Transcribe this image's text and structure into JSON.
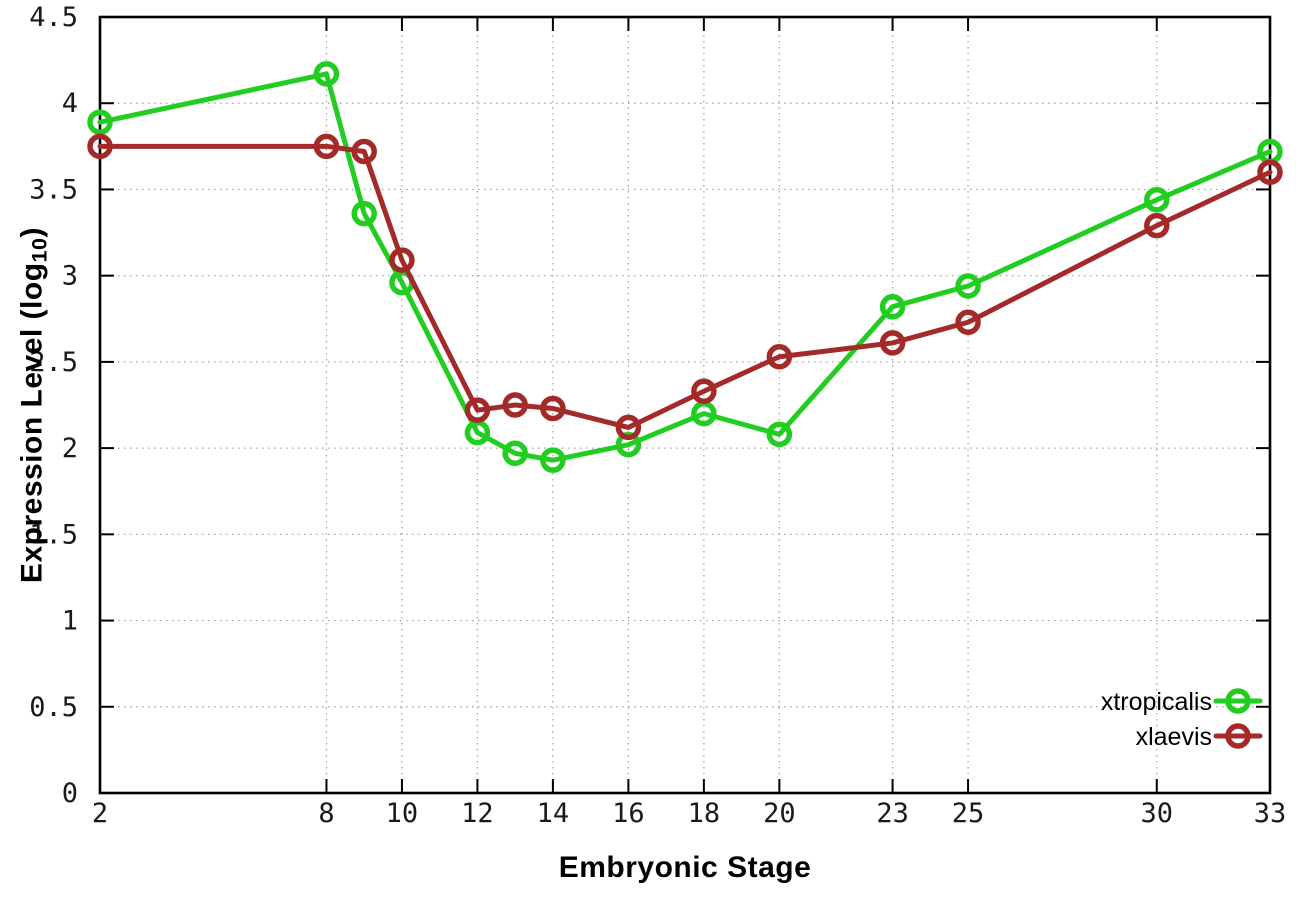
{
  "figure": {
    "background": "#ffffff",
    "border_color": "#000000",
    "grid_color": "#a0a0a0",
    "tick_label_color": "#1a1a1a"
  },
  "chart_data": {
    "type": "line",
    "title": "",
    "xlabel": "Embryonic Stage",
    "ylabel": "Expression Level (log10)",
    "ylabel_parts": {
      "main": "Expression Level (log",
      "sub": "10",
      "end": ")"
    },
    "x": [
      2,
      8,
      9,
      10,
      12,
      13,
      14,
      16,
      18,
      20,
      23,
      25,
      30,
      33
    ],
    "series": [
      {
        "name": "xtropicalis",
        "color": "#22cd22",
        "marker": "open-circle",
        "values": [
          3.89,
          4.17,
          3.36,
          2.96,
          2.09,
          1.97,
          1.93,
          2.02,
          2.2,
          2.08,
          2.82,
          2.94,
          3.44,
          3.72
        ]
      },
      {
        "name": "xlaevis",
        "color": "#a42a2a",
        "marker": "open-circle",
        "values": [
          3.75,
          3.75,
          3.72,
          3.09,
          2.22,
          2.25,
          2.23,
          2.12,
          2.33,
          2.53,
          2.61,
          2.73,
          3.29,
          3.6
        ]
      }
    ],
    "xlim": [
      2,
      33
    ],
    "ylim": [
      0,
      4.5
    ],
    "xticks": [
      2,
      8,
      10,
      12,
      14,
      16,
      18,
      20,
      23,
      25,
      30,
      33
    ],
    "xtick_labels": [
      "2",
      "8",
      "10",
      "12",
      "14",
      "16",
      "18",
      "20",
      "23",
      "25",
      "30",
      "33"
    ],
    "yticks": [
      0,
      0.5,
      1,
      1.5,
      2,
      2.5,
      3,
      3.5,
      4,
      4.5
    ],
    "ytick_labels": [
      "0",
      "0.5",
      "1",
      "1.5",
      "2",
      "2.5",
      "3",
      "3.5",
      "4",
      "4.5"
    ],
    "grid": true,
    "grid_style": "dotted",
    "legend_position": "bottom-right",
    "legend": {
      "items": [
        "xtropicalis",
        "xlaevis"
      ]
    }
  }
}
